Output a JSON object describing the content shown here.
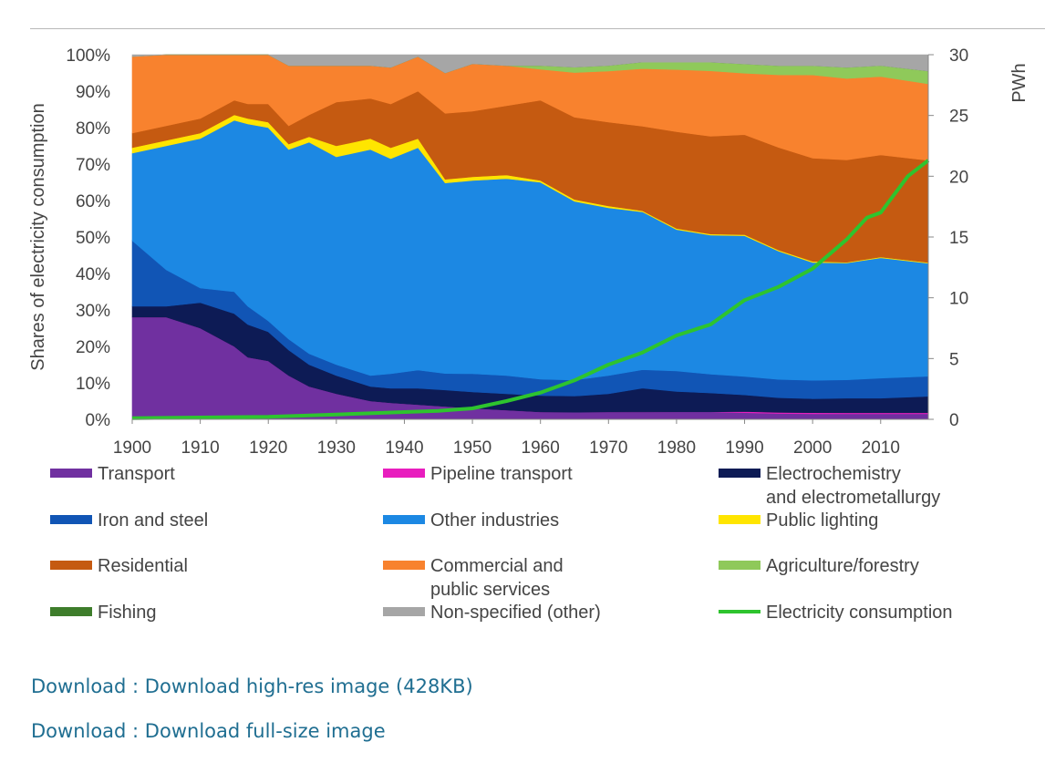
{
  "chart_data": {
    "type": "area",
    "subtype": "stacked-100-percent",
    "title": "",
    "xlabel": "",
    "ylabel": "Shares of electricity consumption",
    "y2label": "PWh",
    "xlim": [
      1900,
      2017
    ],
    "ylim": [
      0,
      100
    ],
    "y2lim": [
      0,
      30
    ],
    "x_ticks": [
      1900,
      1910,
      1920,
      1930,
      1940,
      1950,
      1960,
      1970,
      1980,
      1990,
      2000,
      2010
    ],
    "x_tick_labels": [
      "1900",
      "1910",
      "1920",
      "1930",
      "1940",
      "1950",
      "1960",
      "1970",
      "1980",
      "1990",
      "2000",
      "2010"
    ],
    "y_tick_labels": [
      "0%",
      "10%",
      "20%",
      "30%",
      "40%",
      "50%",
      "60%",
      "70%",
      "80%",
      "90%",
      "100%"
    ],
    "y2_tick_labels": [
      "0",
      "5",
      "10",
      "15",
      "20",
      "25",
      "30"
    ],
    "years": [
      1900,
      1905,
      1910,
      1915,
      1917,
      1920,
      1923,
      1926,
      1930,
      1935,
      1938,
      1942,
      1946,
      1950,
      1955,
      1960,
      1965,
      1970,
      1975,
      1980,
      1985,
      1990,
      1995,
      2000,
      2005,
      2010,
      2017
    ],
    "series": [
      {
        "name": "Transport",
        "color": "#7030a0",
        "values": [
          28,
          28,
          25,
          20,
          17,
          16,
          12,
          9,
          7,
          5,
          4.5,
          4,
          3.5,
          3,
          2.5,
          2,
          2,
          2,
          2,
          2,
          2,
          1.8,
          1.6,
          1.5,
          1.5,
          1.5,
          1.5
        ]
      },
      {
        "name": "Pipeline transport",
        "color": "#e81ebe",
        "values": [
          0,
          0,
          0,
          0,
          0,
          0,
          0,
          0,
          0,
          0,
          0,
          0,
          0,
          0,
          0,
          0,
          0,
          0,
          0,
          0,
          0,
          0.3,
          0.3,
          0.3,
          0.3,
          0.3,
          0.3
        ]
      },
      {
        "name": "Electrochemistry and electrometallurgy",
        "color": "#0d1b55",
        "values": [
          3,
          3,
          7,
          9,
          9,
          8,
          7,
          6,
          5,
          4,
          4,
          4.5,
          4.5,
          4.5,
          4.5,
          4.5,
          4.5,
          5,
          6.5,
          5.5,
          5,
          4.5,
          4,
          3.8,
          4,
          4,
          4.5
        ]
      },
      {
        "name": "Iron and steel",
        "color": "#1155b5",
        "values": [
          18,
          10,
          4,
          6,
          5,
          3,
          3,
          3,
          3,
          3,
          4,
          5,
          4.5,
          5,
          5,
          4.5,
          4.5,
          5,
          5,
          5.5,
          5,
          5,
          5,
          5,
          5,
          5.5,
          5.5
        ]
      },
      {
        "name": "Other industries",
        "color": "#1c88e3",
        "values": [
          24,
          34,
          41,
          47,
          50,
          53,
          52,
          58,
          57,
          62,
          59,
          61,
          52,
          53,
          54,
          54,
          50,
          46,
          43,
          38,
          37,
          38,
          35,
          32,
          32,
          33,
          31
        ]
      },
      {
        "name": "Public lighting",
        "color": "#ffe500",
        "values": [
          1.5,
          1.5,
          1.5,
          1.5,
          1.5,
          1.5,
          1.5,
          1.5,
          3,
          3,
          3,
          2.5,
          1,
          1,
          1,
          0.5,
          0.5,
          0.5,
          0.3,
          0.3,
          0.3,
          0.3,
          0.3,
          0.3,
          0.2,
          0.2,
          0.2
        ]
      },
      {
        "name": "Residential",
        "color": "#c55a11",
        "values": [
          4,
          4,
          4,
          4,
          4,
          5,
          5,
          6,
          12,
          11,
          12,
          13,
          18,
          18,
          19,
          22,
          23,
          23,
          23,
          26,
          26,
          27,
          28,
          28,
          28,
          28,
          28
        ]
      },
      {
        "name": "Commercial and public services",
        "color": "#f8822e",
        "values": [
          21,
          19.5,
          17.5,
          12.5,
          13.5,
          13.5,
          16.5,
          13.5,
          10,
          9,
          10,
          9.5,
          11,
          13,
          11,
          8.5,
          12.5,
          14,
          15.7,
          16.7,
          17.4,
          16.6,
          19.8,
          22.6,
          22.3,
          21.5,
          21
        ]
      },
      {
        "name": "Agriculture/forestry",
        "color": "#8fc95a",
        "values": [
          0,
          0,
          0,
          0,
          0,
          0,
          0,
          0,
          0,
          0,
          0,
          0,
          0,
          0,
          0,
          1,
          1.5,
          1.5,
          1.8,
          2,
          2.3,
          2.5,
          2.5,
          2.5,
          3,
          3,
          3.5
        ]
      },
      {
        "name": "Fishing",
        "color": "#3e7d2b",
        "values": [
          0,
          0,
          0,
          0,
          0,
          0,
          0,
          0,
          0,
          0,
          0,
          0,
          0,
          0,
          0,
          0,
          0,
          0,
          0,
          0,
          0,
          0,
          0,
          0,
          0,
          0,
          0
        ]
      },
      {
        "name": "Non-specified (other)",
        "color": "#a6a6a6",
        "values": [
          0.5,
          0,
          0,
          0,
          0,
          0,
          3,
          3,
          3,
          3,
          3.5,
          0.5,
          5,
          2.5,
          3,
          3,
          3.5,
          3,
          2,
          2,
          2,
          2.5,
          3,
          3,
          3.5,
          3,
          4.5
        ]
      }
    ],
    "line_series": {
      "name": "Electricity consumption",
      "color": "#2ec42e",
      "axis": "right",
      "unit": "PWh",
      "x": [
        1900,
        1910,
        1920,
        1930,
        1940,
        1945,
        1950,
        1955,
        1960,
        1965,
        1970,
        1975,
        1980,
        1985,
        1990,
        1995,
        2000,
        2005,
        2008,
        2010,
        2014,
        2017
      ],
      "values": [
        0.1,
        0.15,
        0.2,
        0.4,
        0.6,
        0.7,
        0.9,
        1.5,
        2.2,
        3.2,
        4.5,
        5.5,
        6.9,
        7.8,
        9.8,
        10.9,
        12.4,
        14.8,
        16.6,
        17.0,
        20.0,
        21.3
      ]
    },
    "legend_position": "below",
    "legend": [
      {
        "label": "Transport",
        "color": "#7030a0"
      },
      {
        "label": "Pipeline transport",
        "color": "#e81ebe"
      },
      {
        "label": "Electrochemistry",
        "label2": "and electrometallurgy",
        "color": "#0d1b55"
      },
      {
        "label": "Iron and steel",
        "color": "#1155b5"
      },
      {
        "label": "Other industries",
        "color": "#1c88e3"
      },
      {
        "label": "Public lighting",
        "color": "#ffe500"
      },
      {
        "label": "Residential",
        "color": "#c55a11"
      },
      {
        "label": "Commercial and",
        "label2": "public services",
        "color": "#f8822e"
      },
      {
        "label": "Agriculture/forestry",
        "color": "#8fc95a"
      },
      {
        "label": "Fishing",
        "color": "#3e7d2b"
      },
      {
        "label": "Non-specified (other)",
        "color": "#a6a6a6"
      },
      {
        "label": "Electricity consumption",
        "color": "#2ec42e",
        "line": true
      }
    ]
  },
  "links": {
    "hires": "Download : Download high-res image (428KB)",
    "full": "Download : Download full-size image"
  }
}
